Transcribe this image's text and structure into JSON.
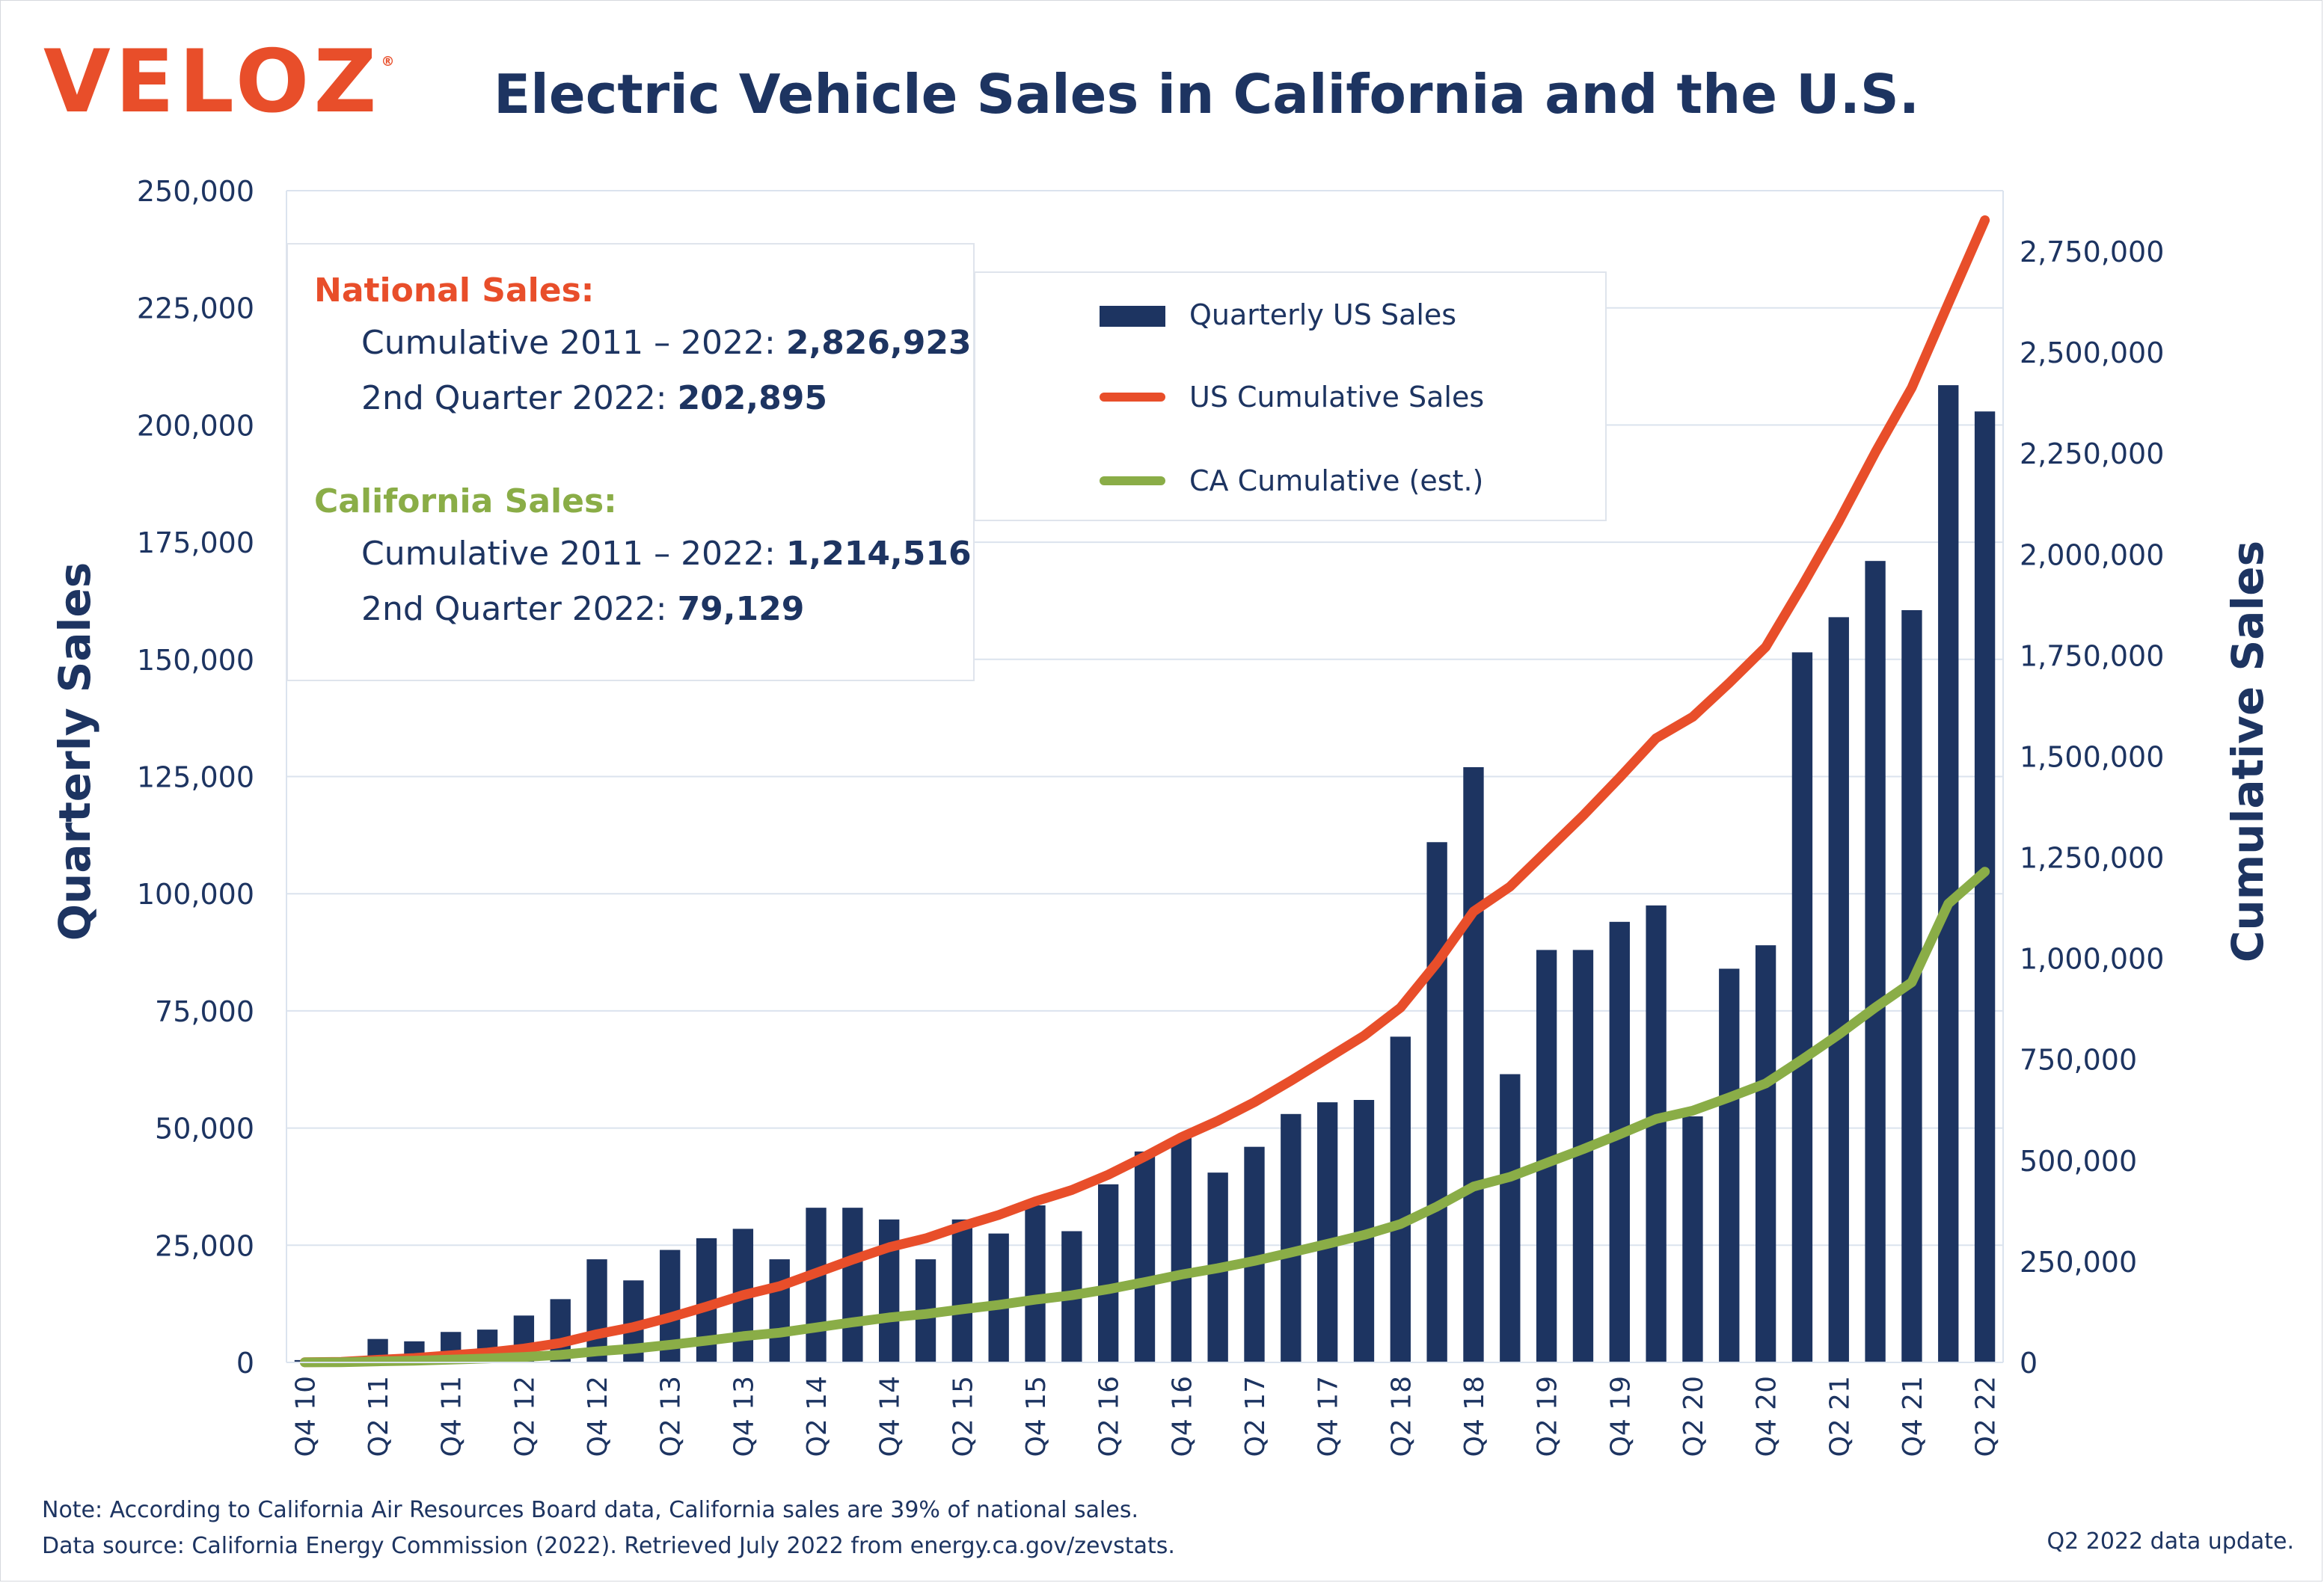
{
  "header": {
    "logo": "VELOZ",
    "logo_mark": "®",
    "title": "Electric Vehicle Sales in California and the U.S."
  },
  "infobox": {
    "national_heading": "National Sales:",
    "national_cumulative_label": "Cumulative 2011 – 2022: ",
    "national_cumulative_value": "2,826,923",
    "national_quarter_label": "2nd Quarter 2022: ",
    "national_quarter_value": "202,895",
    "ca_heading": "California Sales:",
    "ca_cumulative_label": "Cumulative 2011 – 2022: ",
    "ca_cumulative_value": "1,214,516",
    "ca_quarter_label": "2nd Quarter 2022: ",
    "ca_quarter_value": "79,129"
  },
  "footer": {
    "note": "Note: According to California Air Resources Board data, California sales are 39% of national sales.",
    "source": "Data source: California Energy Commission (2022). Retrieved July 2022 from energy.ca.gov/zevstats.",
    "update": "Q2 2022 data update."
  },
  "colors": {
    "bar": "#1d3461",
    "us_line": "#e84e2a",
    "ca_line": "#8aad47",
    "text": "#1d3461",
    "grid": "#dbe3ee"
  },
  "chart_data": {
    "type": "bar",
    "x": [
      "Q4 10",
      "Q1 11",
      "Q2 11",
      "Q3 11",
      "Q4 11",
      "Q1 12",
      "Q2 12",
      "Q3 12",
      "Q4 12",
      "Q1 13",
      "Q2 13",
      "Q3 13",
      "Q4 13",
      "Q1 14",
      "Q2 14",
      "Q3 14",
      "Q4 14",
      "Q1 15",
      "Q2 15",
      "Q3 15",
      "Q4 15",
      "Q1 16",
      "Q2 16",
      "Q3 16",
      "Q4 16",
      "Q1 17",
      "Q2 17",
      "Q3 17",
      "Q4 17",
      "Q1 18",
      "Q2 18",
      "Q3 18",
      "Q4 18",
      "Q1 19",
      "Q2 19",
      "Q3 19",
      "Q4 19",
      "Q1 20",
      "Q2 20",
      "Q3 20",
      "Q4 20",
      "Q1 21",
      "Q2 21",
      "Q3 21",
      "Q4 21",
      "Q1 22",
      "Q2 22"
    ],
    "x_tick_labels": [
      "Q4 10",
      "Q2 11",
      "Q4 11",
      "Q2 12",
      "Q4 12",
      "Q2 13",
      "Q4 13",
      "Q2 14",
      "Q4 14",
      "Q2 15",
      "Q4 15",
      "Q2 16",
      "Q4 16",
      "Q2 17",
      "Q4 17",
      "Q2 18",
      "Q4 18",
      "Q2 19",
      "Q4 19",
      "Q2 20",
      "Q4 20",
      "Q2 21",
      "Q4 21",
      "Q2 22"
    ],
    "series": [
      {
        "name": "Quarterly US Sales",
        "type": "bar",
        "axis": "left",
        "values": [
          500,
          1000,
          5000,
          4500,
          6500,
          7000,
          10000,
          13500,
          22000,
          17500,
          24000,
          26500,
          28500,
          22000,
          33000,
          33000,
          30500,
          22000,
          30500,
          27500,
          33500,
          28000,
          38000,
          45000,
          48000,
          40500,
          46000,
          53000,
          55500,
          56000,
          69500,
          111000,
          127000,
          61500,
          88000,
          88000,
          94000,
          97500,
          52500,
          84000,
          89000,
          151500,
          159000,
          171000,
          160500,
          208500,
          202895
        ]
      },
      {
        "name": "US Cumulative Sales",
        "type": "line",
        "axis": "right",
        "values": [
          500,
          1500,
          6500,
          11000,
          17500,
          24500,
          34500,
          48000,
          70000,
          87500,
          111500,
          138000,
          166500,
          188500,
          221500,
          254500,
          285000,
          307000,
          337500,
          365000,
          398500,
          426500,
          464500,
          509500,
          557500,
          598000,
          644000,
          697000,
          752500,
          808500,
          878000,
          989000,
          1116000,
          1177500,
          1265500,
          1353500,
          1447500,
          1545000,
          1597500,
          1681500,
          1770500,
          1922000,
          2081000,
          2252000,
          2412500,
          2621000,
          2826923
        ]
      },
      {
        "name": "CA Cumulative (est.)",
        "type": "line",
        "axis": "right",
        "values": [
          200,
          600,
          2500,
          4300,
          6800,
          9600,
          13500,
          18700,
          27300,
          34100,
          43500,
          53800,
          64900,
          73500,
          86400,
          99300,
          111200,
          119800,
          131600,
          142300,
          155300,
          166200,
          181200,
          198700,
          217400,
          233200,
          251200,
          271800,
          293400,
          315300,
          342400,
          385700,
          435200,
          459200,
          493500,
          527800,
          564500,
          602500,
          623000,
          655800,
          690500,
          749600,
          811600,
          878300,
          940900,
          1135400,
          1214516
        ]
      }
    ],
    "ylabel": "Quarterly Sales",
    "y2label": "Cumulative Sales",
    "ylim": [
      0,
      250000
    ],
    "y2lim": [
      0,
      2900000
    ],
    "yticks": [
      "0",
      "25,000",
      "50,000",
      "75,000",
      "100,000",
      "125,000",
      "150,000",
      "175,000",
      "200,000",
      "225,000",
      "250,000"
    ],
    "y2ticks": [
      "0",
      "250,000",
      "500,000",
      "750,000",
      "1,000,000",
      "1,250,000",
      "1,500,000",
      "1,750,000",
      "2,000,000",
      "2,250,000",
      "2,500,000",
      "2,750,000"
    ],
    "grid": true,
    "legend": "top-center"
  }
}
